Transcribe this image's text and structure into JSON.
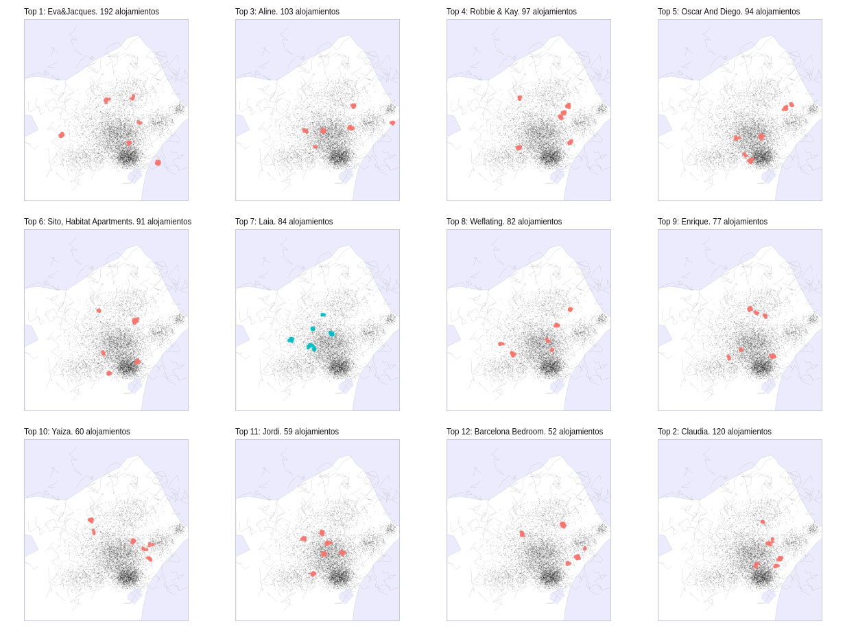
{
  "figure": {
    "panels": [
      {
        "title": "Top 1: Eva&Jacques. 192 alojamientos",
        "host_color": "#f8766d",
        "seed": 11
      },
      {
        "title": "Top 3: Aline. 103 alojamientos",
        "host_color": "#f8766d",
        "seed": 23
      },
      {
        "title": "Top 4: Robbie & Kay. 97 alojamientos",
        "host_color": "#f8766d",
        "seed": 37
      },
      {
        "title": "Top 5: Oscar And Diego. 94 alojamientos",
        "host_color": "#f8766d",
        "seed": 41
      },
      {
        "title": "Top 6: Sito, Habitat Apartments. 91 alojamientos",
        "host_color": "#f8766d",
        "seed": 53
      },
      {
        "title": "Top 7: Laia. 84 alojamientos",
        "host_color": "#00bfc4",
        "seed": 67
      },
      {
        "title": "Top 8: Weflating. 82 alojamientos",
        "host_color": "#f8766d",
        "seed": 71
      },
      {
        "title": "Top 9: Enrique. 77 alojamientos",
        "host_color": "#f8766d",
        "seed": 83
      },
      {
        "title": "Top 10: Yaiza. 60 alojamientos",
        "host_color": "#f8766d",
        "seed": 97
      },
      {
        "title": "Top 11: Jordi. 59 alojamientos",
        "host_color": "#f8766d",
        "seed": 101
      },
      {
        "title": "Top 12: Barcelona Bedroom. 52 alojamientos",
        "host_color": "#f8766d",
        "seed": 113
      },
      {
        "title": "Top 2: Claudia. 120 alojamientos",
        "host_color": "#f8766d",
        "seed": 127
      }
    ],
    "colors": {
      "sea": "#ecebfd",
      "land": "#ffffff",
      "all_listings": "#000000",
      "streets": "#9a9a9a"
    }
  }
}
